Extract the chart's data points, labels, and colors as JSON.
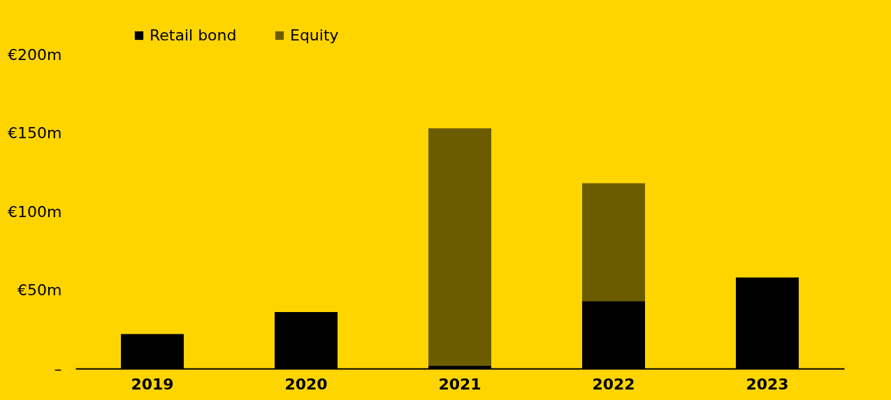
{
  "chart_data": {
    "type": "bar",
    "stacked": true,
    "categories": [
      "2019",
      "2020",
      "2021",
      "2022",
      "2023"
    ],
    "series": [
      {
        "name": "Retail bond",
        "color": "#000000",
        "values": [
          22,
          36,
          2,
          43,
          58
        ]
      },
      {
        "name": "Equity",
        "color": "#6b5c00",
        "values": [
          null,
          null,
          151,
          75,
          null
        ]
      }
    ],
    "ylim": [
      0,
      200
    ],
    "yticks": [
      {
        "value": 0,
        "label": "–"
      },
      {
        "value": 50,
        "label": "€50m"
      },
      {
        "value": 100,
        "label": "€100m"
      },
      {
        "value": 150,
        "label": "€150m"
      },
      {
        "value": 200,
        "label": "€200m"
      }
    ],
    "grid": false,
    "legend": "top left"
  }
}
